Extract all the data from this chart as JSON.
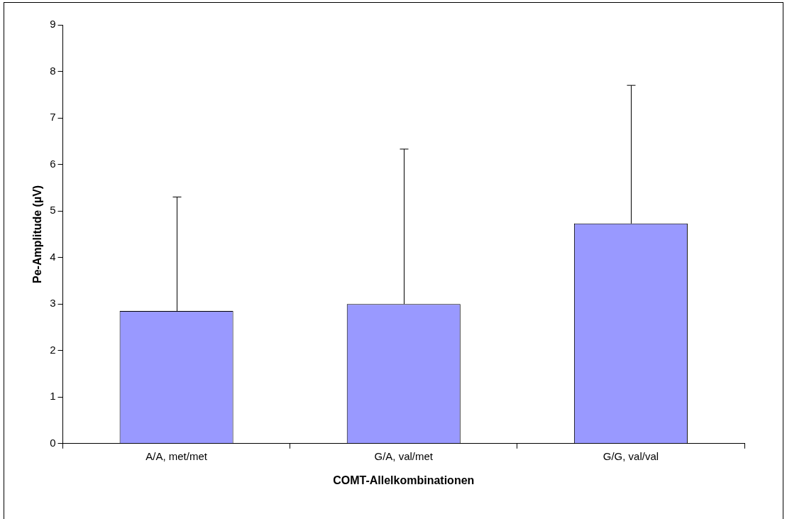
{
  "chart_data": {
    "type": "bar",
    "xlabel": "COMT-Allelkombinationen",
    "ylabel": "Pe-Amplitude (µV)",
    "categories": [
      "A/A, met/met",
      "G/A, val/met",
      "G/G, val/val"
    ],
    "values": [
      2.85,
      3.0,
      4.73
    ],
    "errors": [
      [
        2.85,
        5.3
      ],
      [
        3.0,
        6.33
      ],
      [
        4.73,
        7.7
      ]
    ],
    "color": "#9999ff",
    "ylim": [
      0,
      9
    ],
    "yticks": [
      0,
      1,
      2,
      3,
      4,
      5,
      6,
      7,
      8,
      9
    ],
    "grid": false,
    "legend": false
  }
}
